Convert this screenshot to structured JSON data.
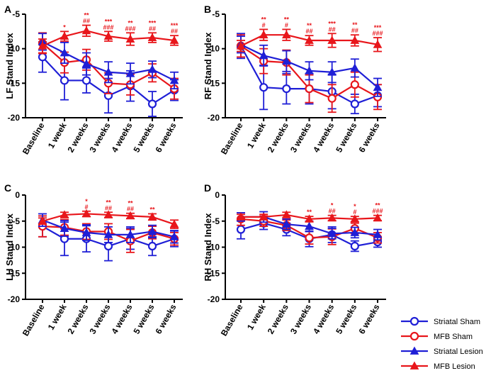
{
  "colors": {
    "blue": "#1f1fd6",
    "red": "#e8161b"
  },
  "legend": [
    {
      "name": "Striatal Sham",
      "color": "#1f1fd6",
      "marker": "circle-open"
    },
    {
      "name": "MFB Sham",
      "color": "#e8161b",
      "marker": "circle-open"
    },
    {
      "name": "Striatal Lesion",
      "color": "#1f1fd6",
      "marker": "triangle-filled"
    },
    {
      "name": "MFB Lesion",
      "color": "#e8161b",
      "marker": "triangle-filled"
    }
  ],
  "chart_data": [
    {
      "panel": "A",
      "type": "line",
      "ylabel": "LF Stand Index",
      "ylim": [
        -20,
        -5
      ],
      "yticks": [
        "-5",
        "-10",
        "-15",
        "-20"
      ],
      "categories": [
        "Baseline",
        "1 week",
        "2 weeks",
        "3 weeks",
        "4 weeks",
        "5 weeks",
        "6 weeks"
      ],
      "series": [
        {
          "name": "Striatal Sham",
          "values": [
            -11.2,
            -14.6,
            -14.6,
            -16.8,
            -15.4,
            -18.0,
            -16.0
          ],
          "err": [
            2.2,
            2.8,
            1.8,
            2.5,
            2.2,
            1.8,
            1.5
          ]
        },
        {
          "name": "MFB Sham",
          "values": [
            -9.2,
            -12.0,
            -11.6,
            -15.0,
            -15.2,
            -13.5,
            -15.8
          ],
          "err": [
            1.5,
            1.5,
            1.5,
            1.5,
            1.5,
            1.3,
            1.5
          ]
        },
        {
          "name": "Striatal Lesion",
          "values": [
            -9.0,
            -10.6,
            -12.2,
            -13.4,
            -13.6,
            -13.0,
            -14.6
          ],
          "err": [
            1.2,
            1.5,
            1.6,
            1.5,
            1.5,
            1.2,
            1.2
          ]
        },
        {
          "name": "MFB Lesion",
          "values": [
            -9.6,
            -8.2,
            -7.4,
            -8.2,
            -8.6,
            -8.4,
            -8.8
          ],
          "err": [
            1.0,
            0.7,
            0.8,
            0.7,
            0.9,
            0.7,
            0.7
          ]
        }
      ],
      "annotations": [
        {
          "index": 1,
          "lines": [
            "*"
          ]
        },
        {
          "index": 2,
          "lines": [
            "**",
            "##"
          ]
        },
        {
          "index": 3,
          "lines": [
            "***",
            "###"
          ]
        },
        {
          "index": 4,
          "lines": [
            "**",
            "###"
          ]
        },
        {
          "index": 5,
          "lines": [
            "***",
            "##"
          ]
        },
        {
          "index": 6,
          "lines": [
            "***",
            "##"
          ]
        }
      ]
    },
    {
      "panel": "B",
      "type": "line",
      "ylabel": "RF Stand Index",
      "ylim": [
        -20,
        -5
      ],
      "yticks": [
        "-5",
        "-10",
        "-15",
        "-20"
      ],
      "categories": [
        "Baseline",
        "1 week",
        "2 weeks",
        "3 weeks",
        "4 weeks",
        "5 weeks",
        "6 weeks"
      ],
      "series": [
        {
          "name": "Striatal Sham",
          "values": [
            -9.6,
            -15.6,
            -15.8,
            -15.8,
            -16.2,
            -18.0,
            -16.8
          ],
          "err": [
            1.8,
            3.2,
            2.2,
            2.2,
            2.5,
            1.4,
            1.6
          ]
        },
        {
          "name": "MFB Sham",
          "values": [
            -9.6,
            -11.8,
            -12.0,
            -15.8,
            -17.2,
            -15.2,
            -17.0
          ],
          "err": [
            1.6,
            1.8,
            1.8,
            2.0,
            2.0,
            1.8,
            1.8
          ]
        },
        {
          "name": "Striatal Lesion",
          "values": [
            -9.4,
            -11.0,
            -11.8,
            -13.2,
            -13.4,
            -12.8,
            -15.6
          ],
          "err": [
            1.2,
            1.5,
            1.5,
            1.3,
            1.5,
            1.3,
            1.3
          ]
        },
        {
          "name": "MFB Lesion",
          "values": [
            -9.6,
            -8.0,
            -8.0,
            -8.8,
            -8.8,
            -8.8,
            -9.4
          ],
          "err": [
            0.8,
            0.8,
            0.8,
            0.7,
            1.0,
            0.8,
            1.0
          ]
        }
      ],
      "annotations": [
        {
          "index": 1,
          "lines": [
            "**",
            "#"
          ]
        },
        {
          "index": 2,
          "lines": [
            "**",
            "#"
          ]
        },
        {
          "index": 3,
          "lines": [
            "**",
            "##"
          ]
        },
        {
          "index": 4,
          "lines": [
            "***",
            "##"
          ]
        },
        {
          "index": 5,
          "lines": [
            "**",
            "##"
          ]
        },
        {
          "index": 6,
          "lines": [
            "***",
            "###"
          ]
        }
      ]
    },
    {
      "panel": "C",
      "type": "line",
      "ylabel": "LH Stand Index",
      "ylim": [
        -20,
        0
      ],
      "yticks": [
        "0",
        "-5",
        "-10",
        "-15",
        "-20"
      ],
      "categories": [
        "Baseline",
        "1 week",
        "2 weeks",
        "3 weeks",
        "4 weeks",
        "5 weeks",
        "6 weeks"
      ],
      "series": [
        {
          "name": "Striatal Sham",
          "values": [
            -6.0,
            -8.4,
            -8.4,
            -9.8,
            -8.4,
            -9.8,
            -8.4
          ],
          "err": [
            2.0,
            3.2,
            2.5,
            2.8,
            2.0,
            1.8,
            1.5
          ]
        },
        {
          "name": "MFB Sham",
          "values": [
            -6.0,
            -6.2,
            -7.0,
            -7.0,
            -8.8,
            -7.2,
            -8.4
          ],
          "err": [
            2.0,
            1.5,
            1.5,
            1.5,
            2.2,
            1.2,
            1.2
          ]
        },
        {
          "name": "Striatal Lesion",
          "values": [
            -4.8,
            -6.4,
            -7.2,
            -7.6,
            -7.6,
            -7.0,
            -8.0
          ],
          "err": [
            1.2,
            1.5,
            1.5,
            1.5,
            1.5,
            1.2,
            1.2
          ]
        },
        {
          "name": "MFB Lesion",
          "values": [
            -5.0,
            -3.8,
            -3.6,
            -3.8,
            -4.0,
            -4.2,
            -5.6
          ],
          "err": [
            0.6,
            0.5,
            0.5,
            0.5,
            0.5,
            0.6,
            0.8
          ]
        }
      ],
      "annotations": [
        {
          "index": 2,
          "lines": [
            "*",
            "#"
          ]
        },
        {
          "index": 3,
          "lines": [
            "**",
            "##"
          ]
        },
        {
          "index": 4,
          "lines": [
            "**",
            "##"
          ]
        },
        {
          "index": 5,
          "lines": [
            "**",
            ""
          ]
        }
      ]
    },
    {
      "panel": "D",
      "type": "line",
      "ylabel": "RH Stand Index",
      "ylim": [
        -20,
        0
      ],
      "yticks": [
        "0",
        "-5",
        "-10",
        "-15",
        "-20"
      ],
      "categories": [
        "Baseline",
        "1 week",
        "2 weeks",
        "3 weeks",
        "4 weeks",
        "5 weeks",
        "6 weeks"
      ],
      "series": [
        {
          "name": "Striatal Sham",
          "values": [
            -6.6,
            -5.4,
            -6.6,
            -8.4,
            -7.6,
            -9.8,
            -9.0
          ],
          "err": [
            1.8,
            1.2,
            1.2,
            1.5,
            1.5,
            1.0,
            1.0
          ]
        },
        {
          "name": "MFB Sham",
          "values": [
            -4.6,
            -5.0,
            -5.8,
            -8.2,
            -8.0,
            -6.4,
            -8.2
          ],
          "err": [
            1.2,
            1.0,
            1.0,
            1.2,
            1.5,
            1.0,
            1.0
          ]
        },
        {
          "name": "Striatal Lesion",
          "values": [
            -4.2,
            -4.2,
            -5.6,
            -6.0,
            -7.4,
            -7.2,
            -7.6
          ],
          "err": [
            0.8,
            1.0,
            1.0,
            1.0,
            1.0,
            1.0,
            1.0
          ]
        },
        {
          "name": "MFB Lesion",
          "values": [
            -4.2,
            -4.2,
            -3.8,
            -4.6,
            -4.4,
            -4.6,
            -4.4
          ],
          "err": [
            0.5,
            0.5,
            0.5,
            0.5,
            0.5,
            0.5,
            0.5
          ]
        }
      ],
      "annotations": [
        {
          "index": 3,
          "lines": [
            "**",
            ""
          ]
        },
        {
          "index": 4,
          "lines": [
            "*",
            "##"
          ]
        },
        {
          "index": 5,
          "lines": [
            "*",
            "#"
          ]
        },
        {
          "index": 6,
          "lines": [
            "**",
            "###"
          ]
        }
      ]
    }
  ]
}
